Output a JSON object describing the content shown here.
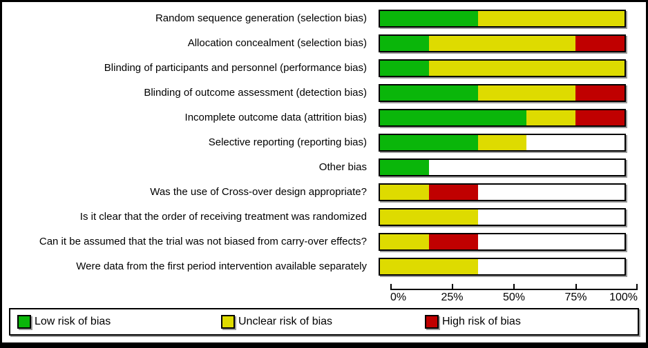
{
  "chart_data": {
    "type": "bar",
    "subtype": "horizontal-stacked",
    "title": "",
    "xlabel": "",
    "ylabel": "",
    "xlim": [
      0,
      100
    ],
    "unit": "percent",
    "grid": false,
    "x_ticks": [
      "0%",
      "25%",
      "50%",
      "75%",
      "100%"
    ],
    "x_tick_values": [
      0,
      25,
      50,
      75,
      100
    ],
    "legend_position": "bottom",
    "legend": [
      {
        "key": "low",
        "label": "Low risk of bias",
        "color": "#0ab60a"
      },
      {
        "key": "unclear",
        "label": "Unclear risk of bias",
        "color": "#dedb00"
      },
      {
        "key": "high",
        "label": "High risk of bias",
        "color": "#c00000"
      }
    ],
    "rows": [
      {
        "label": "Random sequence generation (selection bias)",
        "low": 40,
        "unclear": 60,
        "high": 0
      },
      {
        "label": "Allocation concealment (selection bias)",
        "low": 20,
        "unclear": 60,
        "high": 20
      },
      {
        "label": "Blinding of participants and personnel (performance bias)",
        "low": 20,
        "unclear": 80,
        "high": 0
      },
      {
        "label": "Blinding of outcome assessment (detection bias)",
        "low": 40,
        "unclear": 40,
        "high": 20
      },
      {
        "label": "Incomplete outcome data (attrition bias)",
        "low": 60,
        "unclear": 20,
        "high": 20
      },
      {
        "label": "Selective reporting (reporting bias)",
        "low": 40,
        "unclear": 20,
        "high": 0
      },
      {
        "label": "Other bias",
        "low": 20,
        "unclear": 0,
        "high": 0
      },
      {
        "label": "Was the use of Cross-over design appropriate?",
        "low": 0,
        "unclear": 20,
        "high": 20
      },
      {
        "label": "Is it clear that the order of receiving treatment was randomized",
        "low": 0,
        "unclear": 40,
        "high": 0
      },
      {
        "label": "Can it be assumed that the trial was not biased from carry-over effects?",
        "low": 0,
        "unclear": 20,
        "high": 20
      },
      {
        "label": "Were data from the first period intervention available separately",
        "low": 0,
        "unclear": 40,
        "high": 0
      }
    ]
  },
  "colors": {
    "background": "#ffffff",
    "frame_border": "#000000",
    "bar_border": "#000000",
    "shadow": "#9c9c9c",
    "unfilled": "#ffffff"
  }
}
